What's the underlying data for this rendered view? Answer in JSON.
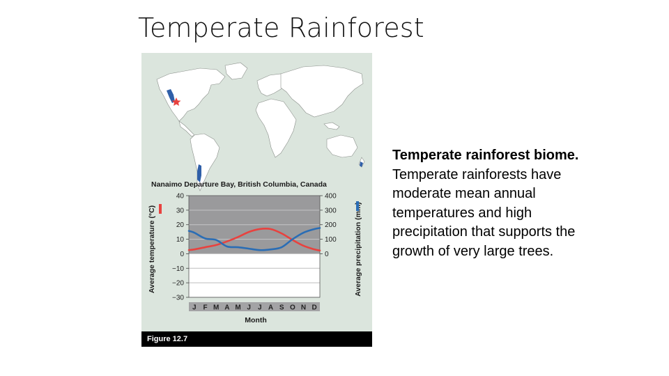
{
  "slide": {
    "title": "Temperate Rainforest",
    "figure_caption": "Figure 12.7",
    "description_title": "Temperate rainforest biome.",
    "description_body": "Temperate rainforests have moderate mean annual temperatures and high precipitation that supports the growth of very large trees."
  },
  "map": {
    "marker_icon": "star-icon",
    "colors": {
      "land": "#ffffff",
      "ocean": "#dbe5dd",
      "biome": "#2f5fa8",
      "marker": "#e8423f"
    }
  },
  "chart_data": {
    "type": "line",
    "title": "Nanaimo Departure Bay, British Columbia, Canada",
    "xlabel": "Month",
    "categories": [
      "J",
      "F",
      "M",
      "A",
      "M",
      "J",
      "J",
      "A",
      "S",
      "O",
      "N",
      "D"
    ],
    "y_left": {
      "label": "Average temperature (°C)",
      "ylim": [
        -30,
        40
      ],
      "ticks": [
        "40",
        "30",
        "20",
        "10",
        "0",
        "−10",
        "−20",
        "−30"
      ]
    },
    "y_right": {
      "label": "Average precipitation (mm)",
      "ylim": [
        0,
        400
      ],
      "ticks": [
        "400",
        "300",
        "200",
        "100",
        "0"
      ]
    },
    "series": [
      {
        "axis": "left",
        "color": "#e8423f",
        "values": [
          3,
          4.5,
          6,
          8.5,
          11.5,
          15,
          17,
          17,
          14,
          9.5,
          5.5,
          3
        ]
      },
      {
        "axis": "right",
        "color": "#2a6db5",
        "values": [
          145,
          105,
          95,
          50,
          45,
          35,
          25,
          30,
          45,
          100,
          145,
          170
        ]
      }
    ],
    "grid": true,
    "colors": {
      "shaded_band": "#9a9a9c",
      "plot_bg": "#ffffff",
      "month_bar": "#a3a3a5"
    }
  }
}
